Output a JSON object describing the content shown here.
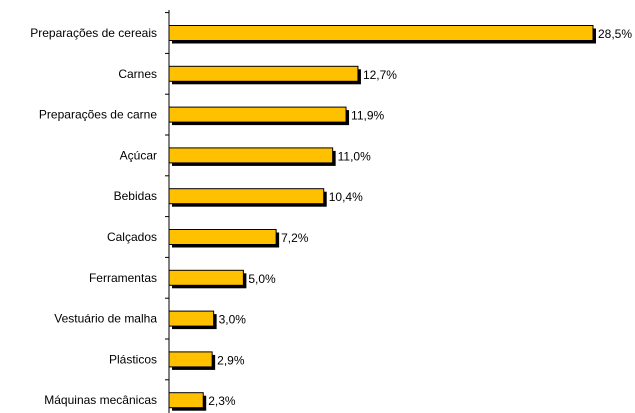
{
  "chart_data": {
    "type": "bar",
    "orientation": "horizontal",
    "categories": [
      "Preparações de cereais",
      "Carnes",
      "Preparações de carne",
      "Açúcar",
      "Bebidas",
      "Calçados",
      "Ferramentas",
      "Vestuário de malha",
      "Plásticos",
      "Máquinas mecânicas"
    ],
    "values": [
      28.5,
      12.7,
      11.9,
      11.0,
      10.4,
      7.2,
      5.0,
      3.0,
      2.9,
      2.3
    ],
    "value_labels": [
      "28,5%",
      "12,7%",
      "11,9%",
      "11,0%",
      "10,4%",
      "7,2%",
      "5,0%",
      "3,0%",
      "2,9%",
      "2,3%"
    ],
    "unit": "%",
    "xlim": [
      0,
      30
    ],
    "grid": false,
    "legend": "none",
    "title": "",
    "xlabel": "",
    "ylabel": "",
    "colors": {
      "bar_fill": "#FFC000",
      "bar_stroke": "#000000",
      "bar_shadow": "#000000",
      "axis": "#000000"
    }
  }
}
